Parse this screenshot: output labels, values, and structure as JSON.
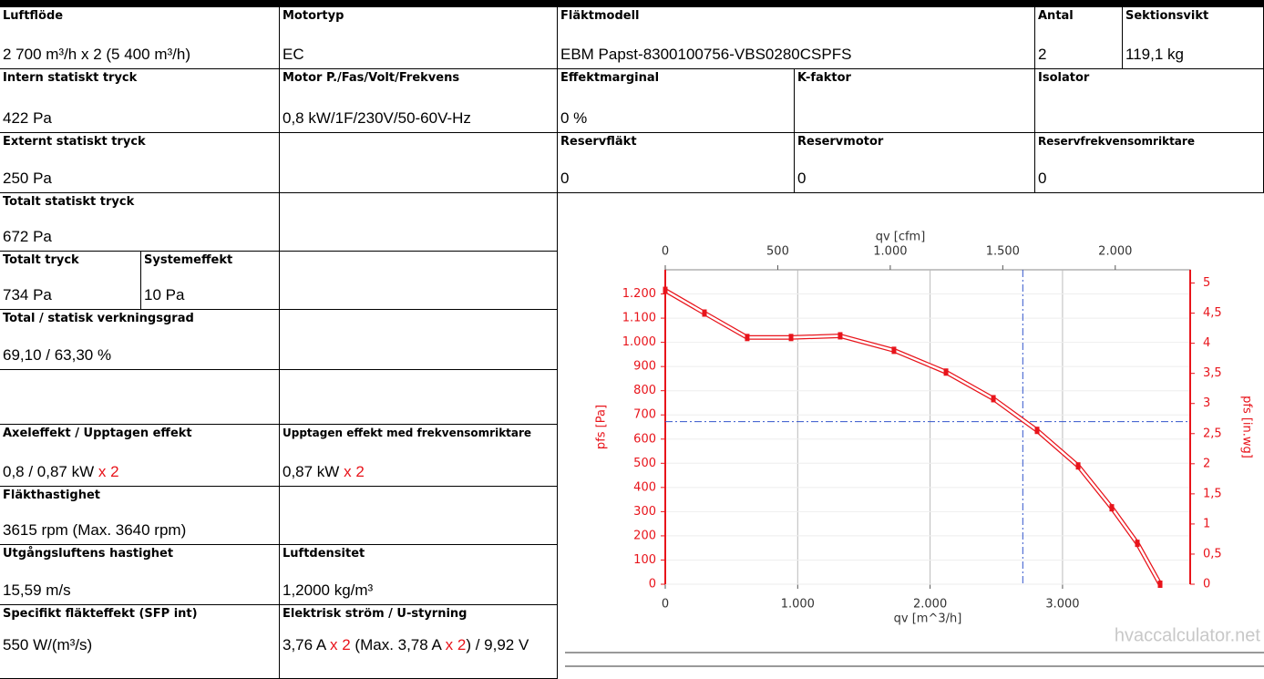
{
  "table": {
    "cells": [
      {
        "label": "Luftflöde",
        "value": "2 700 m³/h x 2 (5 400 m³/h)"
      },
      {
        "label": "Motortyp",
        "value": "EC"
      },
      {
        "label": "Fläktmodell",
        "value": "EBM Papst-8300100756-VBS0280CSPFS"
      },
      {
        "label": "Antal",
        "value": "2"
      },
      {
        "label": "Sektionsvikt",
        "value": "119,1 kg"
      },
      {
        "label": "Intern statiskt tryck",
        "value": "422 Pa"
      },
      {
        "label": "Motor P./Fas/Volt/Frekvens",
        "value": "0,8 kW/1F/230V/50-60V-Hz"
      },
      {
        "label": "Effektmarginal",
        "value": "0 %"
      },
      {
        "label": "K-faktor"
      },
      {
        "label": "Isolator"
      },
      {
        "label": "Externt statiskt tryck",
        "value": "250 Pa"
      },
      {
        "label": "Reservfläkt",
        "value": "0"
      },
      {
        "label": "Reservmotor",
        "value": "0"
      },
      {
        "label": "Reservfrekvensomriktare",
        "value": "0"
      },
      {
        "label": "Totalt statiskt tryck",
        "value": "672 Pa"
      },
      {
        "label": "Totalt tryck",
        "value": "734 Pa"
      },
      {
        "label": "Systemeffekt",
        "value": "10 Pa"
      },
      {
        "label": "Total / statisk verkningsgrad",
        "value": "69,10 / 63,30 %"
      },
      {
        "label": "Axeleffekt / Upptagen effekt",
        "value_parts": [
          {
            "text": "0,8 / 0,87 kW "
          },
          {
            "text": "x 2",
            "color": "#e8141b"
          }
        ]
      },
      {
        "label": "Upptagen effekt med frekvensomriktare",
        "value_parts": [
          {
            "text": "0,87 kW "
          },
          {
            "text": "x 2",
            "color": "#e8141b"
          }
        ]
      },
      {
        "label": "Fläkthastighet",
        "value": "3615 rpm (Max. 3640 rpm)"
      },
      {
        "label": "Utgångsluftens hastighet",
        "value": "15,59 m/s"
      },
      {
        "label": "Luftdensitet",
        "value": "1,2000 kg/m³"
      },
      {
        "label": "Specifikt fläkteffekt (SFP int)",
        "value": "550 W/(m³/s)"
      },
      {
        "label": "Elektrisk ström / U-styrning",
        "value_parts": [
          {
            "text": "3,76 A "
          },
          {
            "text": "x 2",
            "color": "#e8141b"
          },
          {
            "text": " (Max. 3,78 A "
          },
          {
            "text": "x 2",
            "color": "#e8141b"
          },
          {
            "text": ") / 9,92 V"
          }
        ]
      }
    ]
  },
  "chart_data": {
    "type": "line",
    "x_label": "qv [m^3/h]",
    "x2_label": "qv [cfm]",
    "y_label": "pfs [Pa]",
    "y2_label": "pfs [in.wg]",
    "watermark": "hvaccalculator.net",
    "xlim": [
      0,
      3964
    ],
    "xticks": [
      0,
      {
        "value": 1000,
        "label": "1.000"
      },
      {
        "value": 2000,
        "label": "2.000"
      },
      {
        "value": 3000,
        "label": "3.000"
      }
    ],
    "x2lim": [
      0,
      2333
    ],
    "x2ticks": [
      0,
      500,
      {
        "value": 1000,
        "label": "1.000"
      },
      {
        "value": 1500,
        "label": "1.500"
      },
      {
        "value": 2000,
        "label": "2.000"
      }
    ],
    "ylim": [
      0,
      1300
    ],
    "yticks": [
      0,
      100,
      200,
      300,
      400,
      500,
      600,
      700,
      800,
      900,
      {
        "value": 1000,
        "label": "1.000"
      },
      {
        "value": 1100,
        "label": "1.100"
      },
      {
        "value": 1200,
        "label": "1.200"
      }
    ],
    "y2lim": [
      0,
      5.22
    ],
    "y2ticks": [
      0,
      {
        "value": 0.5,
        "label": "0,5"
      },
      1,
      {
        "value": 1.5,
        "label": "1,5"
      },
      2,
      {
        "value": 2.5,
        "label": "2,5"
      },
      3,
      {
        "value": 3.5,
        "label": "3,5"
      },
      4,
      {
        "value": 4.5,
        "label": "4,5"
      },
      5
    ],
    "axis_color": "#e8141b",
    "grid": true,
    "x": [
      0,
      296,
      619,
      950,
      1321,
      1727,
      2120,
      2478,
      2808,
      3118,
      3372,
      3565,
      3737
    ],
    "series": [
      {
        "color": "#e8141b",
        "values": [
          1215,
          1121,
          1020,
          1020,
          1027,
          967,
          877,
          767,
          636,
          489,
          316,
          169,
          0
        ]
      }
    ],
    "reference_lines": {
      "x": 2700,
      "y": 672,
      "color": "#3355cc"
    }
  }
}
